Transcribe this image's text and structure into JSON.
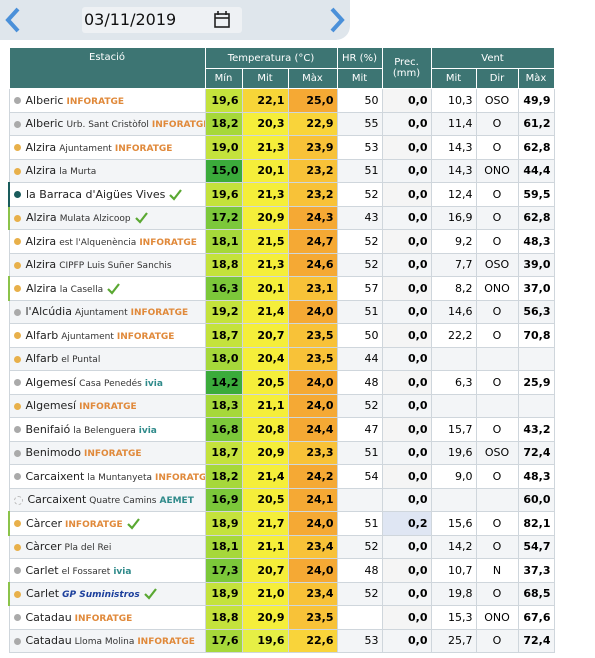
{
  "date": "03/11/2019",
  "headers": {
    "station": "Estació",
    "temperature": "Temperatura (°C)",
    "hr": "HR (%)",
    "prec": "Prec. (mm)",
    "wind": "Vent",
    "t_min": "Mín",
    "t_mit": "Mit",
    "t_max": "Màx",
    "hr_mit": "Mit",
    "w_mit": "Mit",
    "w_dir": "Dir",
    "w_max": "Màx"
  },
  "rows": [
    {
      "town": "Alberic",
      "source": "INFORATGE",
      "dot": "#aaaaaa",
      "tmin": "19,6",
      "tmit": "22,1",
      "tmax": "25,0",
      "hr": "50",
      "prec": "0,0",
      "vmit": "10,3",
      "vdir": "OSO",
      "vmax": "49,9"
    },
    {
      "town": "Alberic",
      "place": "Urb. Sant Cristòfol",
      "source": "INFORATGE",
      "dot": "#aaaaaa",
      "tmin": "18,2",
      "tmit": "20,3",
      "tmax": "22,9",
      "hr": "55",
      "prec": "0,0",
      "vmit": "11,4",
      "vdir": "O",
      "vmax": "61,2"
    },
    {
      "town": "Alzira",
      "place": "Ajuntament",
      "source": "INFORATGE",
      "dot": "#e8b04a",
      "tmin": "19,0",
      "tmit": "21,3",
      "tmax": "23,9",
      "hr": "53",
      "prec": "0,0",
      "vmit": "14,3",
      "vdir": "O",
      "vmax": "62,8"
    },
    {
      "town": "Alzira",
      "place": "la Murta",
      "dot": "#e8b04a",
      "tmin": "15,0",
      "tmit": "20,1",
      "tmax": "23,2",
      "hr": "51",
      "prec": "0,0",
      "vmit": "14,3",
      "vdir": "ONO",
      "vmax": "44,4"
    },
    {
      "town": "la Barraca d'Aigües Vives",
      "verified": true,
      "dot": "#1a5c5c",
      "tmin": "19,6",
      "tmit": "21,3",
      "tmax": "23,2",
      "hr": "52",
      "prec": "0,0",
      "vmit": "12,4",
      "vdir": "O",
      "vmax": "59,5"
    },
    {
      "town": "Alzira",
      "place": "Mulata Alzicoop",
      "verified": true,
      "dot": "#e8b04a",
      "tmin": "17,2",
      "tmit": "20,9",
      "tmax": "24,3",
      "hr": "43",
      "prec": "0,0",
      "vmit": "16,9",
      "vdir": "O",
      "vmax": "62,8"
    },
    {
      "town": "Alzira",
      "place": "est l'Alquenència",
      "source": "INFORATGE",
      "dot": "#e8b04a",
      "tmin": "18,1",
      "tmit": "21,5",
      "tmax": "24,7",
      "hr": "52",
      "prec": "0,0",
      "vmit": "9,2",
      "vdir": "O",
      "vmax": "48,3"
    },
    {
      "town": "Alzira",
      "place": "CIPFP Luis Suñer Sanchis",
      "dot": "#e8b04a",
      "tmin": "18,8",
      "tmit": "21,3",
      "tmax": "24,6",
      "hr": "52",
      "prec": "0,0",
      "vmit": "7,7",
      "vdir": "OSO",
      "vmax": "39,0"
    },
    {
      "town": "Alzira",
      "place": "la Casella",
      "verified": true,
      "dot": "#e8b04a",
      "tmin": "16,3",
      "tmit": "20,1",
      "tmax": "23,1",
      "hr": "57",
      "prec": "0,0",
      "vmit": "8,2",
      "vdir": "ONO",
      "vmax": "37,0"
    },
    {
      "town": "l'Alcúdia",
      "place": "Ajuntament",
      "source": "INFORATGE",
      "dot": "#aaaaaa",
      "tmin": "19,2",
      "tmit": "21,4",
      "tmax": "24,0",
      "hr": "51",
      "prec": "0,0",
      "vmit": "14,6",
      "vdir": "O",
      "vmax": "56,3"
    },
    {
      "town": "Alfarb",
      "place": "Ajuntament",
      "source": "INFORATGE",
      "dot": "#e8b04a",
      "tmin": "18,7",
      "tmit": "20,7",
      "tmax": "23,5",
      "hr": "50",
      "prec": "0,0",
      "vmit": "22,2",
      "vdir": "O",
      "vmax": "70,8"
    },
    {
      "town": "Alfarb",
      "place": "el Puntal",
      "dot": "#e8b04a",
      "tmin": "18,0",
      "tmit": "20,4",
      "tmax": "23,5",
      "hr": "44",
      "prec": "0,0"
    },
    {
      "town": "Algemesí",
      "place": "Casa Penedés",
      "source": "ivia",
      "dot": "#aaaaaa",
      "tmin": "14,2",
      "tmit": "20,5",
      "tmax": "24,0",
      "hr": "48",
      "prec": "0,0",
      "vmit": "6,3",
      "vdir": "O",
      "vmax": "25,9"
    },
    {
      "town": "Algemesí",
      "source": "INFORATGE",
      "dot": "#e8b04a",
      "tmin": "18,3",
      "tmit": "21,1",
      "tmax": "24,0",
      "hr": "52",
      "prec": "0,0"
    },
    {
      "town": "Benifaió",
      "place": "la Belenguera",
      "source": "ivia",
      "dot": "#aaaaaa",
      "tmin": "16,8",
      "tmit": "20,8",
      "tmax": "24,4",
      "hr": "47",
      "prec": "0,0",
      "vmit": "15,7",
      "vdir": "O",
      "vmax": "43,2"
    },
    {
      "town": "Benimodo",
      "source": "INFORATGE",
      "dot": "#aaaaaa",
      "tmin": "18,7",
      "tmit": "20,9",
      "tmax": "23,3",
      "hr": "51",
      "prec": "0,0",
      "vmit": "19,6",
      "vdir": "OSO",
      "vmax": "72,4"
    },
    {
      "town": "Carcaixent",
      "place": "la Muntanyeta",
      "source": "INFORATGE",
      "dot": "#aaaaaa",
      "tmin": "18,2",
      "tmit": "21,4",
      "tmax": "24,2",
      "hr": "54",
      "prec": "0,0",
      "vmit": "9,0",
      "vdir": "O",
      "vmax": "48,3"
    },
    {
      "town": "Carcaixent",
      "place": "Quatre Camins",
      "source": "AEMET",
      "dot": "none",
      "tmin": "16,9",
      "tmit": "20,5",
      "tmax": "24,1",
      "prec": "0,0",
      "vmax": "60,0"
    },
    {
      "town": "Càrcer",
      "source": "INFORATGE",
      "verified": true,
      "dot": "#e8b04a",
      "tmin": "18,9",
      "tmit": "21,7",
      "tmax": "24,0",
      "hr": "51",
      "prec": "0,2",
      "vmit": "15,6",
      "vdir": "O",
      "vmax": "82,1"
    },
    {
      "town": "Càrcer",
      "place": "Pla del Rei",
      "dot": "#e8b04a",
      "tmin": "18,1",
      "tmit": "21,1",
      "tmax": "23,4",
      "hr": "52",
      "prec": "0,0",
      "vmit": "14,2",
      "vdir": "O",
      "vmax": "54,7"
    },
    {
      "town": "Carlet",
      "place": "el Fossaret",
      "source": "ivia",
      "dot": "#aaaaaa",
      "tmin": "17,3",
      "tmit": "20,7",
      "tmax": "24,0",
      "hr": "48",
      "prec": "0,0",
      "vmit": "10,7",
      "vdir": "N",
      "vmax": "37,3"
    },
    {
      "town": "Carlet",
      "source": "GP Suministros",
      "verified": true,
      "dot": "#e8b04a",
      "tmin": "18,9",
      "tmit": "21,0",
      "tmax": "23,4",
      "hr": "52",
      "prec": "0,0",
      "vmit": "19,8",
      "vdir": "O",
      "vmax": "68,5"
    },
    {
      "town": "Catadau",
      "source": "INFORATGE",
      "dot": "#aaaaaa",
      "tmin": "18,8",
      "tmit": "20,9",
      "tmax": "23,5",
      "prec": "0,0",
      "vmit": "15,3",
      "vdir": "ONO",
      "vmax": "67,6"
    },
    {
      "town": "Catadau",
      "place": "Lloma Molina",
      "source": "INFORATGE",
      "dot": "#aaaaaa",
      "tmin": "17,6",
      "tmit": "19,6",
      "tmax": "22,6",
      "hr": "53",
      "prec": "0,0",
      "vmit": "25,7",
      "vdir": "O",
      "vmax": "72,4"
    }
  ]
}
